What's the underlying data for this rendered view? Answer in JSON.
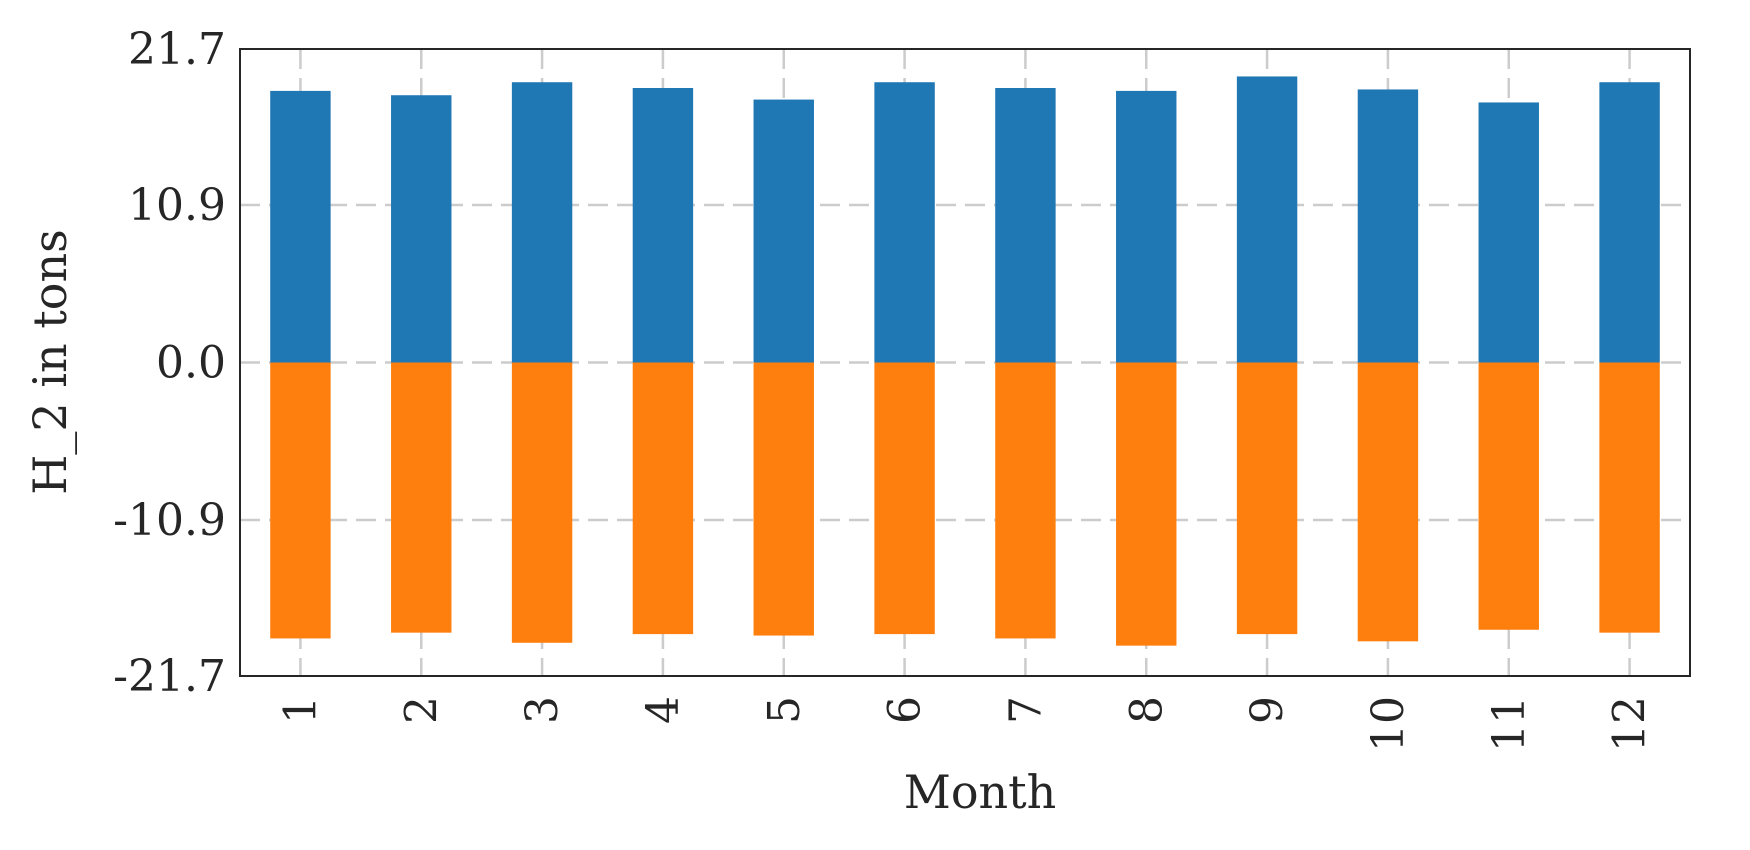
{
  "chart_data": {
    "type": "bar",
    "stacked": true,
    "categories": [
      "1",
      "2",
      "3",
      "4",
      "5",
      "6",
      "7",
      "8",
      "9",
      "10",
      "11",
      "12"
    ],
    "series": [
      {
        "values": [
          18.8,
          18.5,
          19.4,
          19.0,
          18.2,
          19.4,
          19.0,
          18.8,
          19.8,
          18.9,
          18.0,
          19.4
        ],
        "color": "#1f77b4"
      },
      {
        "values": [
          -19.1,
          -18.7,
          -19.4,
          -18.8,
          -18.9,
          -18.8,
          -19.1,
          -19.6,
          -18.8,
          -19.3,
          -18.5,
          -18.7
        ],
        "color": "#ff7f0e"
      }
    ],
    "xlabel": "Month",
    "ylabel": "H_2 in tons",
    "ylim": [
      -21.7,
      21.7
    ],
    "yticks": [
      "21.7",
      "10.9",
      "0.0",
      "-10.9",
      "-21.7"
    ],
    "ytick_values": [
      21.7,
      10.9,
      0.0,
      -10.9,
      -21.7
    ],
    "grid": true,
    "x_tick_rotation": "vertical"
  }
}
